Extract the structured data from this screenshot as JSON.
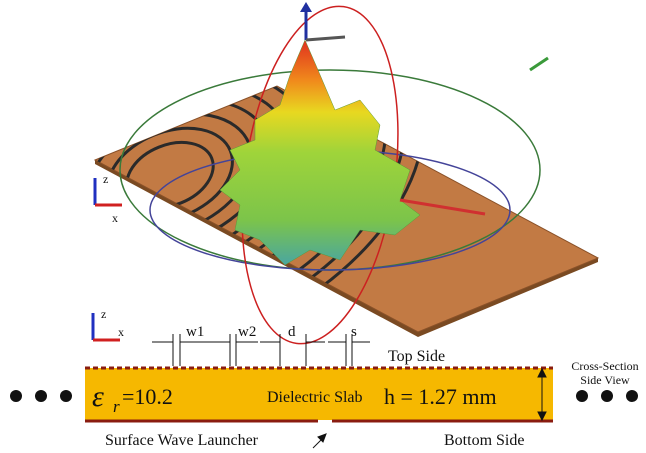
{
  "top_view": {
    "axes": {
      "z": "z",
      "x": "x"
    }
  },
  "cross_section": {
    "axes": {
      "z": "z",
      "x": "x"
    },
    "dimensions": {
      "w1": "w1",
      "w2": "w2",
      "d": "d",
      "s": "s"
    },
    "top_side": "Top Side",
    "view_label": {
      "line1": "Cross-Section",
      "line2": "Side View"
    },
    "permittivity": {
      "symbol": "ε",
      "subscript": "r",
      "value": "=10.2"
    },
    "slab": "Dielectric Slab",
    "thickness": "h = 1.27 mm",
    "launcher": "Surface Wave Launcher",
    "bottom_side": "Bottom Side"
  }
}
